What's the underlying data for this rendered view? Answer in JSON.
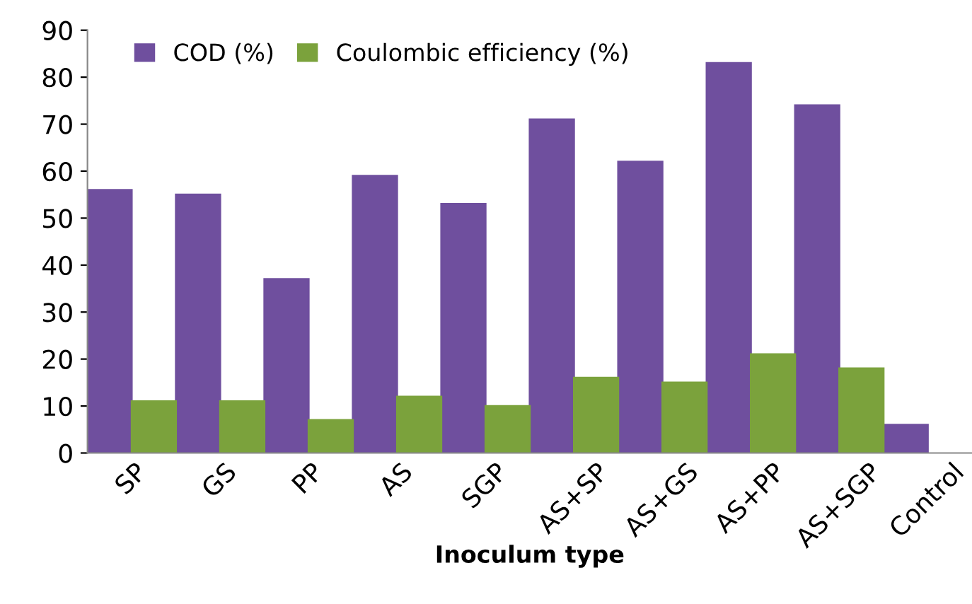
{
  "chart_data": {
    "type": "bar",
    "xlabel": "Inoculum type",
    "categories": [
      "SP",
      "GS",
      "PP",
      "AS",
      "SGP",
      "AS+SP",
      "AS+GS",
      "AS+PP",
      "AS+SGP",
      "Control"
    ],
    "series": [
      {
        "name": "COD (%)",
        "color": "#6f4f9e",
        "values": [
          56,
          55,
          37,
          59,
          53,
          71,
          62,
          83,
          74,
          6
        ]
      },
      {
        "name": "Coulombic efficiency (%)",
        "color": "#7ba23c",
        "values": [
          11,
          11,
          7,
          12,
          10,
          16,
          15,
          21,
          18,
          null
        ]
      }
    ],
    "ylim": [
      0,
      90
    ],
    "yticks": [
      0,
      10,
      20,
      30,
      40,
      50,
      60,
      70,
      80,
      90
    ],
    "grid": false,
    "legend": "top left"
  }
}
